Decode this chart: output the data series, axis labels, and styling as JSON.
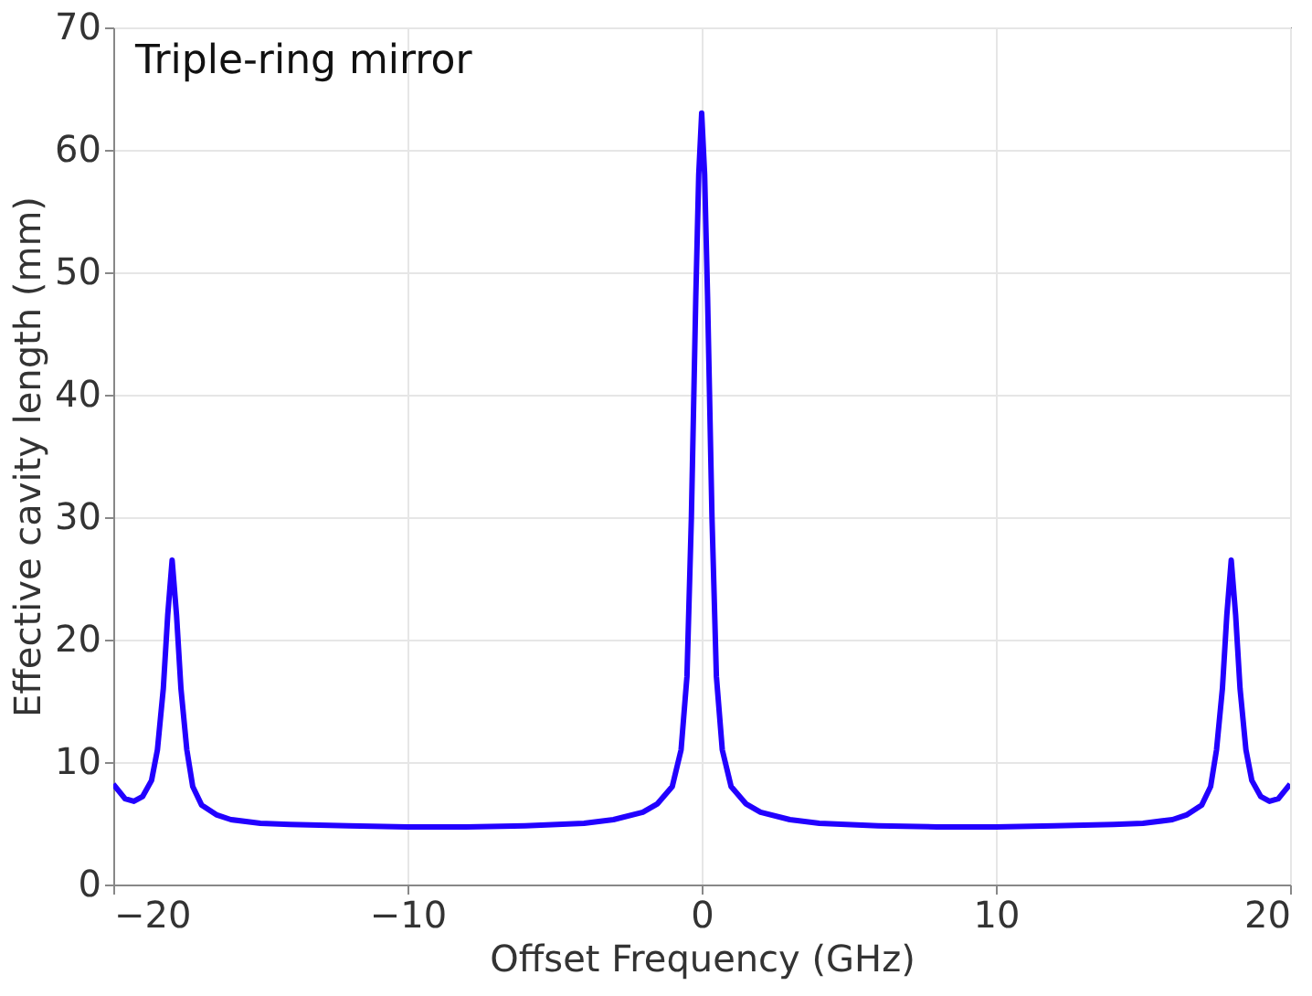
{
  "chart_data": {
    "type": "line",
    "xlabel": "Offset Frequency (GHz)",
    "ylabel": "Effective cavity length (mm)",
    "annotations": [
      "Triple-ring mirror"
    ],
    "xlim": [
      -20,
      20
    ],
    "xticks": [
      -20,
      -10,
      0,
      10,
      20
    ],
    "ylim": [
      0,
      70
    ],
    "yticks": [
      0,
      10,
      20,
      30,
      40,
      50,
      60,
      70
    ],
    "grid": true,
    "series": [
      {
        "color": "#2200ff",
        "x": [
          -20,
          -19.6,
          -19.3,
          -19,
          -18.7,
          -18.5,
          -18.3,
          -18.15,
          -18,
          -17.85,
          -17.7,
          -17.5,
          -17.3,
          -17,
          -16.5,
          -16,
          -15,
          -14,
          -12,
          -10,
          -8,
          -6,
          -4,
          -3,
          -2,
          -1.5,
          -1,
          -0.7,
          -0.5,
          -0.35,
          -0.2,
          -0.1,
          0,
          0.1,
          0.2,
          0.35,
          0.5,
          0.7,
          1,
          1.5,
          2,
          3,
          4,
          6,
          8,
          10,
          12,
          14,
          15,
          16,
          16.5,
          17,
          17.3,
          17.5,
          17.7,
          17.85,
          18,
          18.15,
          18.3,
          18.5,
          18.7,
          19,
          19.3,
          19.6,
          20
        ],
        "values": [
          8.2,
          7.0,
          6.8,
          7.2,
          8.5,
          11,
          16,
          22,
          26.5,
          22,
          16,
          11,
          8,
          6.5,
          5.7,
          5.3,
          5.0,
          4.9,
          4.8,
          4.7,
          4.7,
          4.8,
          5.0,
          5.3,
          5.9,
          6.6,
          8,
          11,
          17,
          30,
          48,
          58,
          63,
          58,
          48,
          30,
          17,
          11,
          8,
          6.6,
          5.9,
          5.3,
          5.0,
          4.8,
          4.7,
          4.7,
          4.8,
          4.9,
          5.0,
          5.3,
          5.7,
          6.5,
          8,
          11,
          16,
          22,
          26.5,
          22,
          16,
          11,
          8.5,
          7.2,
          6.8,
          7.0,
          8.2
        ]
      }
    ]
  }
}
